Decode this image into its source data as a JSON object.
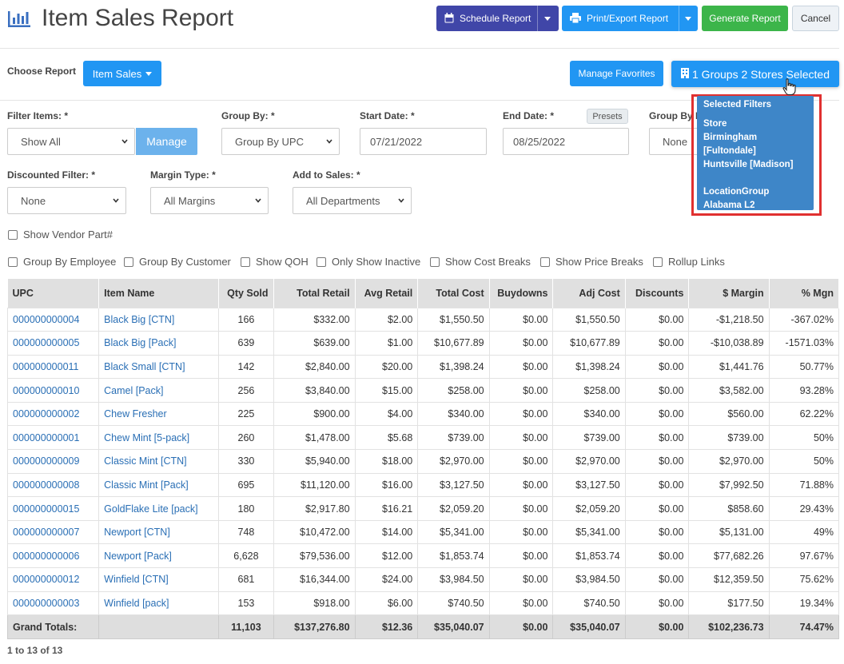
{
  "header": {
    "title": "Item Sales Report",
    "schedule_label": "Schedule Report",
    "print_label": "Print/Export Report",
    "generate_label": "Generate Report",
    "cancel_label": "Cancel"
  },
  "report_bar": {
    "choose_label": "Choose Report",
    "report_value": "Item Sales",
    "favorites_label": "Manage Favorites",
    "location_label": "1 Groups 2 Stores Selected"
  },
  "filters": {
    "filter_items_label": "Filter Items: *",
    "filter_items_value": "Show All",
    "manage_label": "Manage",
    "group_by_label": "Group By: *",
    "group_by_value": "Group By UPC",
    "start_date_label": "Start Date: *",
    "start_date_value": "07/21/2022",
    "end_date_label": "End Date: *",
    "presets_label": "Presets",
    "end_date_value": "08/25/2022",
    "group_by_location_label": "Group By Location: *",
    "group_by_location_value": "None",
    "discounted_label": "Discounted Filter: *",
    "discounted_value": "None",
    "margin_label": "Margin Type: *",
    "margin_value": "All Margins",
    "add_sales_label": "Add to Sales: *",
    "add_sales_value": "All Departments"
  },
  "checkboxes": {
    "vendor_part": "Show Vendor Part#",
    "group_employee": "Group By Employee",
    "group_customer": "Group By Customer",
    "show_qoh": "Show QOH",
    "only_inactive": "Only Show Inactive",
    "cost_breaks": "Show Cost Breaks",
    "price_breaks": "Show Price Breaks",
    "rollup_links": "Rollup Links"
  },
  "popup": {
    "heading": "Selected Filters",
    "store_heading": "Store",
    "store_1": "Birmingham [Fultondale]",
    "store_2": "Huntsville [Madison]",
    "group_heading": "LocationGroup",
    "group_1": "Alabama L2"
  },
  "table": {
    "headers": {
      "upc": "UPC",
      "item": "Item Name",
      "qty": "Qty Sold",
      "retail": "Total Retail",
      "avg": "Avg Retail",
      "cost": "Total Cost",
      "buydowns": "Buydowns",
      "adj": "Adj Cost",
      "discounts": "Discounts",
      "margin": "$ Margin",
      "mgn": "% Mgn"
    },
    "rows": [
      {
        "upc": "000000000004",
        "item": "Black Big [CTN]",
        "qty": "166",
        "retail": "$332.00",
        "avg": "$2.00",
        "cost": "$1,550.50",
        "buydowns": "$0.00",
        "adj": "$1,550.50",
        "discounts": "$0.00",
        "margin": "-$1,218.50",
        "mgn": "-367.02%"
      },
      {
        "upc": "000000000005",
        "item": "Black Big [Pack]",
        "qty": "639",
        "retail": "$639.00",
        "avg": "$1.00",
        "cost": "$10,677.89",
        "buydowns": "$0.00",
        "adj": "$10,677.89",
        "discounts": "$0.00",
        "margin": "-$10,038.89",
        "mgn": "-1571.03%"
      },
      {
        "upc": "000000000011",
        "item": "Black Small [CTN]",
        "qty": "142",
        "retail": "$2,840.00",
        "avg": "$20.00",
        "cost": "$1,398.24",
        "buydowns": "$0.00",
        "adj": "$1,398.24",
        "discounts": "$0.00",
        "margin": "$1,441.76",
        "mgn": "50.77%"
      },
      {
        "upc": "000000000010",
        "item": "Camel [Pack]",
        "qty": "256",
        "retail": "$3,840.00",
        "avg": "$15.00",
        "cost": "$258.00",
        "buydowns": "$0.00",
        "adj": "$258.00",
        "discounts": "$0.00",
        "margin": "$3,582.00",
        "mgn": "93.28%"
      },
      {
        "upc": "000000000002",
        "item": "Chew Fresher",
        "qty": "225",
        "retail": "$900.00",
        "avg": "$4.00",
        "cost": "$340.00",
        "buydowns": "$0.00",
        "adj": "$340.00",
        "discounts": "$0.00",
        "margin": "$560.00",
        "mgn": "62.22%"
      },
      {
        "upc": "000000000001",
        "item": "Chew Mint [5-pack]",
        "qty": "260",
        "retail": "$1,478.00",
        "avg": "$5.68",
        "cost": "$739.00",
        "buydowns": "$0.00",
        "adj": "$739.00",
        "discounts": "$0.00",
        "margin": "$739.00",
        "mgn": "50%"
      },
      {
        "upc": "000000000009",
        "item": "Classic Mint [CTN]",
        "qty": "330",
        "retail": "$5,940.00",
        "avg": "$18.00",
        "cost": "$2,970.00",
        "buydowns": "$0.00",
        "adj": "$2,970.00",
        "discounts": "$0.00",
        "margin": "$2,970.00",
        "mgn": "50%"
      },
      {
        "upc": "000000000008",
        "item": "Classic Mint [Pack]",
        "qty": "695",
        "retail": "$11,120.00",
        "avg": "$16.00",
        "cost": "$3,127.50",
        "buydowns": "$0.00",
        "adj": "$3,127.50",
        "discounts": "$0.00",
        "margin": "$7,992.50",
        "mgn": "71.88%"
      },
      {
        "upc": "000000000015",
        "item": "GoldFlake Lite [pack]",
        "qty": "180",
        "retail": "$2,917.80",
        "avg": "$16.21",
        "cost": "$2,059.20",
        "buydowns": "$0.00",
        "adj": "$2,059.20",
        "discounts": "$0.00",
        "margin": "$858.60",
        "mgn": "29.43%"
      },
      {
        "upc": "000000000007",
        "item": "Newport [CTN]",
        "qty": "748",
        "retail": "$10,472.00",
        "avg": "$14.00",
        "cost": "$5,341.00",
        "buydowns": "$0.00",
        "adj": "$5,341.00",
        "discounts": "$0.00",
        "margin": "$5,131.00",
        "mgn": "49%"
      },
      {
        "upc": "000000000006",
        "item": "Newport [Pack]",
        "qty": "6,628",
        "retail": "$79,536.00",
        "avg": "$12.00",
        "cost": "$1,853.74",
        "buydowns": "$0.00",
        "adj": "$1,853.74",
        "discounts": "$0.00",
        "margin": "$77,682.26",
        "mgn": "97.67%"
      },
      {
        "upc": "000000000012",
        "item": "Winfield [CTN]",
        "qty": "681",
        "retail": "$16,344.00",
        "avg": "$24.00",
        "cost": "$3,984.50",
        "buydowns": "$0.00",
        "adj": "$3,984.50",
        "discounts": "$0.00",
        "margin": "$12,359.50",
        "mgn": "75.62%"
      },
      {
        "upc": "000000000003",
        "item": "Winfield [pack]",
        "qty": "153",
        "retail": "$918.00",
        "avg": "$6.00",
        "cost": "$740.50",
        "buydowns": "$0.00",
        "adj": "$740.50",
        "discounts": "$0.00",
        "margin": "$177.50",
        "mgn": "19.34%"
      }
    ],
    "totals": {
      "label": "Grand Totals:",
      "qty": "11,103",
      "retail": "$137,276.80",
      "avg": "$12.36",
      "cost": "$35,040.07",
      "buydowns": "$0.00",
      "adj": "$35,040.07",
      "discounts": "$0.00",
      "margin": "$102,236.73",
      "mgn": "74.47%"
    }
  },
  "pager": "1 to 13 of 13",
  "icons": {
    "title": "bar-chart-icon",
    "schedule": "calendar-icon",
    "print": "printer-icon",
    "location": "building-icon",
    "cursor": "hand-pointer-icon"
  },
  "colors": {
    "primary": "#2196f3",
    "schedule": "#4046a8",
    "generate": "#3cb54a",
    "link": "#2a6fb5",
    "popup": "#3e86c8",
    "highlight": "#e03030"
  }
}
